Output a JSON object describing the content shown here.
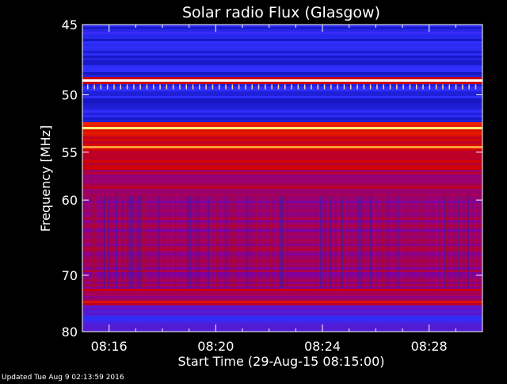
{
  "chart_data": {
    "type": "heatmap",
    "title": "Solar radio Flux (Glasgow)",
    "xlabel": "Start Time (29-Aug-15 08:15:00)",
    "ylabel": "Frequency [MHz]",
    "x_ticks": [
      "08:16",
      "08:20",
      "08:24",
      "08:28"
    ],
    "x_tick_minutes": [
      16,
      20,
      24,
      28
    ],
    "xlim_minutes": [
      15.0,
      30.0
    ],
    "y_ticks": [
      45,
      50,
      55,
      60,
      70,
      80
    ],
    "ylim": [
      45,
      80
    ],
    "y_scale": "reciprocal",
    "bright_bands_mhz": [
      {
        "freq": 48.9,
        "level": 1.0
      },
      {
        "freq": 52.8,
        "level": 0.85
      },
      {
        "freq": 54.5,
        "level": 0.8
      },
      {
        "freq": 56.5,
        "level": 0.75
      },
      {
        "freq": 58.5,
        "level": 0.7
      },
      {
        "freq": 72.5,
        "level": 0.8
      },
      {
        "freq": 74.3,
        "level": 0.75
      }
    ],
    "colormap": [
      "#00008b",
      "#3030ff",
      "#8000a0",
      "#d00000",
      "#ff4000",
      "#ffff80",
      "#ffffff"
    ]
  },
  "footer": {
    "updated": "Updated Tue Aug  9 02:13:59 2016"
  }
}
